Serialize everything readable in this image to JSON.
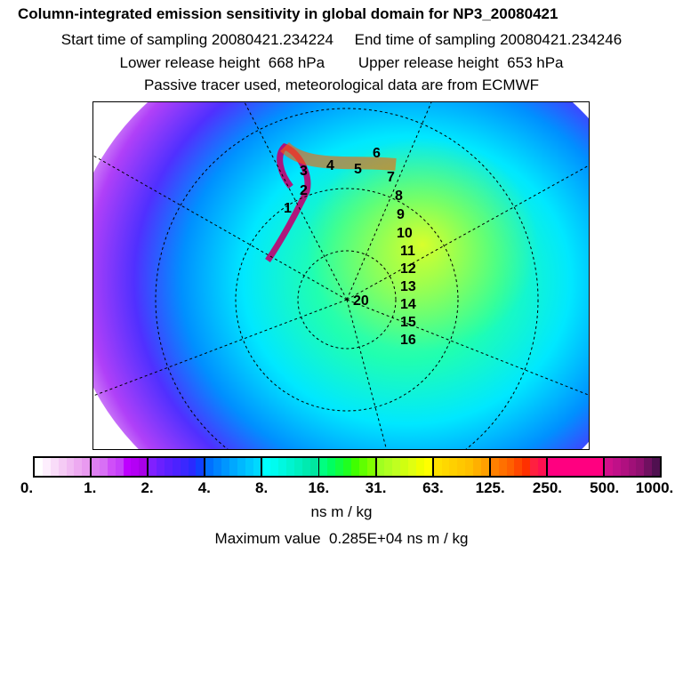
{
  "header": {
    "title": "Column-integrated emission sensitivity in global domain for NP3_20080421",
    "line2": "Start time of sampling 20080421.234224     End time of sampling 20080421.234246",
    "line3": "Lower release height  668 hPa        Upper release height  653 hPa",
    "line4": "Passive tracer used, meteorological data are from ECMWF"
  },
  "map": {
    "trajectory_labels": [
      "1",
      "2",
      "3",
      "4",
      "5",
      "6",
      "7",
      "8",
      "9",
      "10",
      "11",
      "12",
      "13",
      "14",
      "15",
      "16",
      "20"
    ]
  },
  "colorbar": {
    "tick_labels": [
      "0.",
      "1.",
      "2.",
      "4.",
      "8.",
      "16.",
      "31.",
      "63.",
      "125.",
      "250.",
      "500.",
      "1000."
    ],
    "unit": "ns m / kg",
    "segments": [
      [
        "#ffffff",
        "#fdeefd",
        "#f9dcf9",
        "#f5cbf5",
        "#f1bbf3",
        "#edaaf1",
        "#e99af0"
      ],
      [
        "#de80f2",
        "#d870f5",
        "#cf4ff8",
        "#c640fa",
        "#be00ff",
        "#b400f5",
        "#a800e8"
      ],
      [
        "#8020ff",
        "#6a20ff",
        "#5a20ff",
        "#4c22ff",
        "#3a28ff",
        "#2a2aff",
        "#1040ff"
      ],
      [
        "#0070ff",
        "#0084ff",
        "#0096ff",
        "#00a8ff",
        "#00b8ff",
        "#00c8ff",
        "#00d8ff"
      ],
      [
        "#00ffff",
        "#00fcf0",
        "#00f8e0",
        "#00f4d0",
        "#00f0c0",
        "#00eab0",
        "#00e6a0"
      ],
      [
        "#00ff80",
        "#00ff60",
        "#10ff40",
        "#20ff20",
        "#40ff00",
        "#60ff00",
        "#80ff00"
      ],
      [
        "#a0ff20",
        "#b0ff20",
        "#c0ff20",
        "#d0ff10",
        "#e0ff10",
        "#f0ff00",
        "#ffff00"
      ],
      [
        "#ffe000",
        "#ffd800",
        "#ffd000",
        "#ffc800",
        "#ffc000",
        "#ffb000",
        "#ffa000"
      ],
      [
        "#ff8000",
        "#ff7000",
        "#ff6000",
        "#ff4800",
        "#ff3000",
        "#ff2040",
        "#ff1050"
      ],
      [
        "#ff0080",
        "#ff0080",
        "#ff0080",
        "#ff0080",
        "#ff0080",
        "#ff0080",
        "#ff0080"
      ],
      [
        "#d0108a",
        "#c01088",
        "#b01080",
        "#a01078",
        "#901070",
        "#701060",
        "#501050"
      ]
    ],
    "maximum_label": "Maximum value  0.285E+04 ns m / kg"
  }
}
